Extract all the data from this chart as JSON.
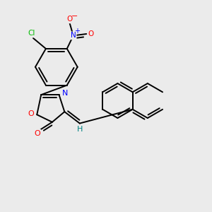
{
  "bg_color": "#ebebeb",
  "bond_color": "#000000",
  "bond_width": 1.4,
  "atom_colors": {
    "O": "#ff0000",
    "N": "#0000ff",
    "Cl": "#00bb00",
    "C": "#000000",
    "H": "#008080"
  },
  "figsize": [
    3.0,
    3.0
  ],
  "dpi": 100,
  "xlim": [
    0,
    10
  ],
  "ylim": [
    0,
    10
  ]
}
